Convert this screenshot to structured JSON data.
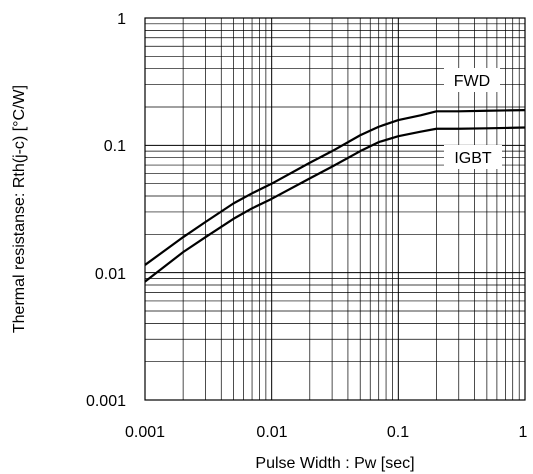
{
  "chart_data": {
    "type": "line",
    "title": "",
    "xlabel": "Pulse Width : Pw [sec]",
    "ylabel": "Thermal resistanse: Rth(j-c) [°C/W]",
    "xscale": "log",
    "yscale": "log",
    "xlim": [
      0.001,
      1
    ],
    "ylim": [
      0.001,
      1
    ],
    "grid": true,
    "x_tick_labels": [
      "0.001",
      "0.01",
      "0.1",
      "1"
    ],
    "y_tick_labels": [
      "0.001",
      "0.01",
      "0.1",
      "1"
    ],
    "series": [
      {
        "name": "FWD",
        "x": [
          0.001,
          0.002,
          0.003,
          0.005,
          0.007,
          0.01,
          0.02,
          0.03,
          0.05,
          0.07,
          0.1,
          0.15,
          0.2,
          0.3,
          0.5,
          0.7,
          1
        ],
        "y": [
          0.0115,
          0.019,
          0.025,
          0.035,
          0.042,
          0.05,
          0.073,
          0.09,
          0.12,
          0.14,
          0.158,
          0.172,
          0.185,
          0.185,
          0.187,
          0.188,
          0.189
        ]
      },
      {
        "name": "IGBT",
        "x": [
          0.001,
          0.002,
          0.003,
          0.005,
          0.007,
          0.01,
          0.02,
          0.03,
          0.05,
          0.07,
          0.1,
          0.15,
          0.2,
          0.3,
          0.5,
          0.7,
          1
        ],
        "y": [
          0.0085,
          0.0145,
          0.019,
          0.0265,
          0.032,
          0.038,
          0.055,
          0.068,
          0.09,
          0.106,
          0.118,
          0.128,
          0.135,
          0.135,
          0.136,
          0.137,
          0.138
        ]
      }
    ]
  },
  "colors": {
    "line": "#000000",
    "grid": "#000000",
    "label_box": "#ffffff"
  }
}
